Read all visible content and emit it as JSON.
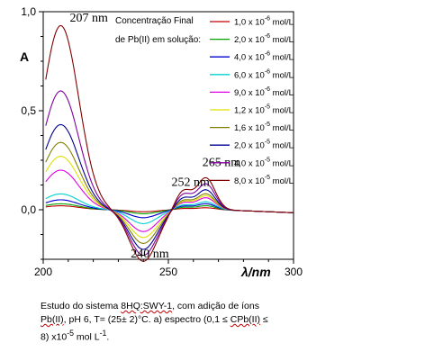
{
  "chart_data": {
    "type": "line",
    "title": "",
    "xlabel": "λ/nm",
    "ylabel": "A",
    "xlim": [
      200,
      300
    ],
    "ylim": [
      -0.25,
      1.0
    ],
    "x_ticks": [
      "200",
      "250",
      "300"
    ],
    "y_ticks": [
      "0,0",
      "0,5",
      "1,0"
    ],
    "legend_title_lines": [
      "Concentração  Final",
      "de Pb(II) em solução:"
    ],
    "legend_placement": "top-right",
    "series": [
      {
        "name": "1,0 x 10^-6 mol/L",
        "color": "#c00000",
        "peak207": 0.02,
        "trough240": -0.01,
        "peak265": 0.01
      },
      {
        "name": "2,0 x 10^-6 mol/L",
        "color": "#00a000",
        "peak207": 0.03,
        "trough240": -0.02,
        "peak265": 0.02
      },
      {
        "name": "4,0 x 10^-6 mol/L",
        "color": "#0000d0",
        "peak207": 0.05,
        "trough240": -0.04,
        "peak265": 0.03
      },
      {
        "name": "6,0 x 10^-6 mol/L",
        "color": "#00d0d0",
        "peak207": 0.08,
        "trough240": -0.07,
        "peak265": 0.04
      },
      {
        "name": "9,0 x 10^-6 mol/L",
        "color": "#e000e0",
        "peak207": 0.2,
        "trough240": -0.11,
        "peak265": 0.06
      },
      {
        "name": "1,2 x 10^-5 mol/L",
        "color": "#e0e000",
        "peak207": 0.27,
        "trough240": -0.14,
        "peak265": 0.07
      },
      {
        "name": "1,6 x 10^-5 mol/L",
        "color": "#808000",
        "peak207": 0.34,
        "trough240": -0.17,
        "peak265": 0.08
      },
      {
        "name": "2,0 x 10^-5 mol/L",
        "color": "#000090",
        "peak207": 0.43,
        "trough240": -0.2,
        "peak265": 0.1
      },
      {
        "name": "4,0 x 10^-5 mol/L",
        "color": "#8000a0",
        "peak207": 0.6,
        "trough240": -0.23,
        "peak265": 0.13
      },
      {
        "name": "8,0 x 10^-5 mol/L",
        "color": "#800000",
        "peak207": 0.93,
        "trough240": -0.26,
        "peak265": 0.16
      }
    ],
    "annotations": [
      {
        "text": "207 nm",
        "x": 207
      },
      {
        "text": "240 nm",
        "x": 240
      },
      {
        "text": "252 nm",
        "x": 252
      },
      {
        "text": "265 nm",
        "x": 265
      }
    ],
    "grid": false
  },
  "caption": {
    "line1_a": "Estudo do sistema ",
    "line1_sq": "8HQ:SWY-1",
    "line1_b": ", com adição de íons",
    "line2_sq": "Pb(II)",
    "line2_b": ", pH 6,  T= (25± 2)°C. a) espectro (0,1 ≤ ",
    "line2_sq2": "CPb(II)",
    "line2_c": " ≤",
    "line3": "8) x10",
    "line3_sup": "-5",
    "line3_b": " mol L",
    "line3_sup2": "-1",
    "line3_c": "."
  }
}
